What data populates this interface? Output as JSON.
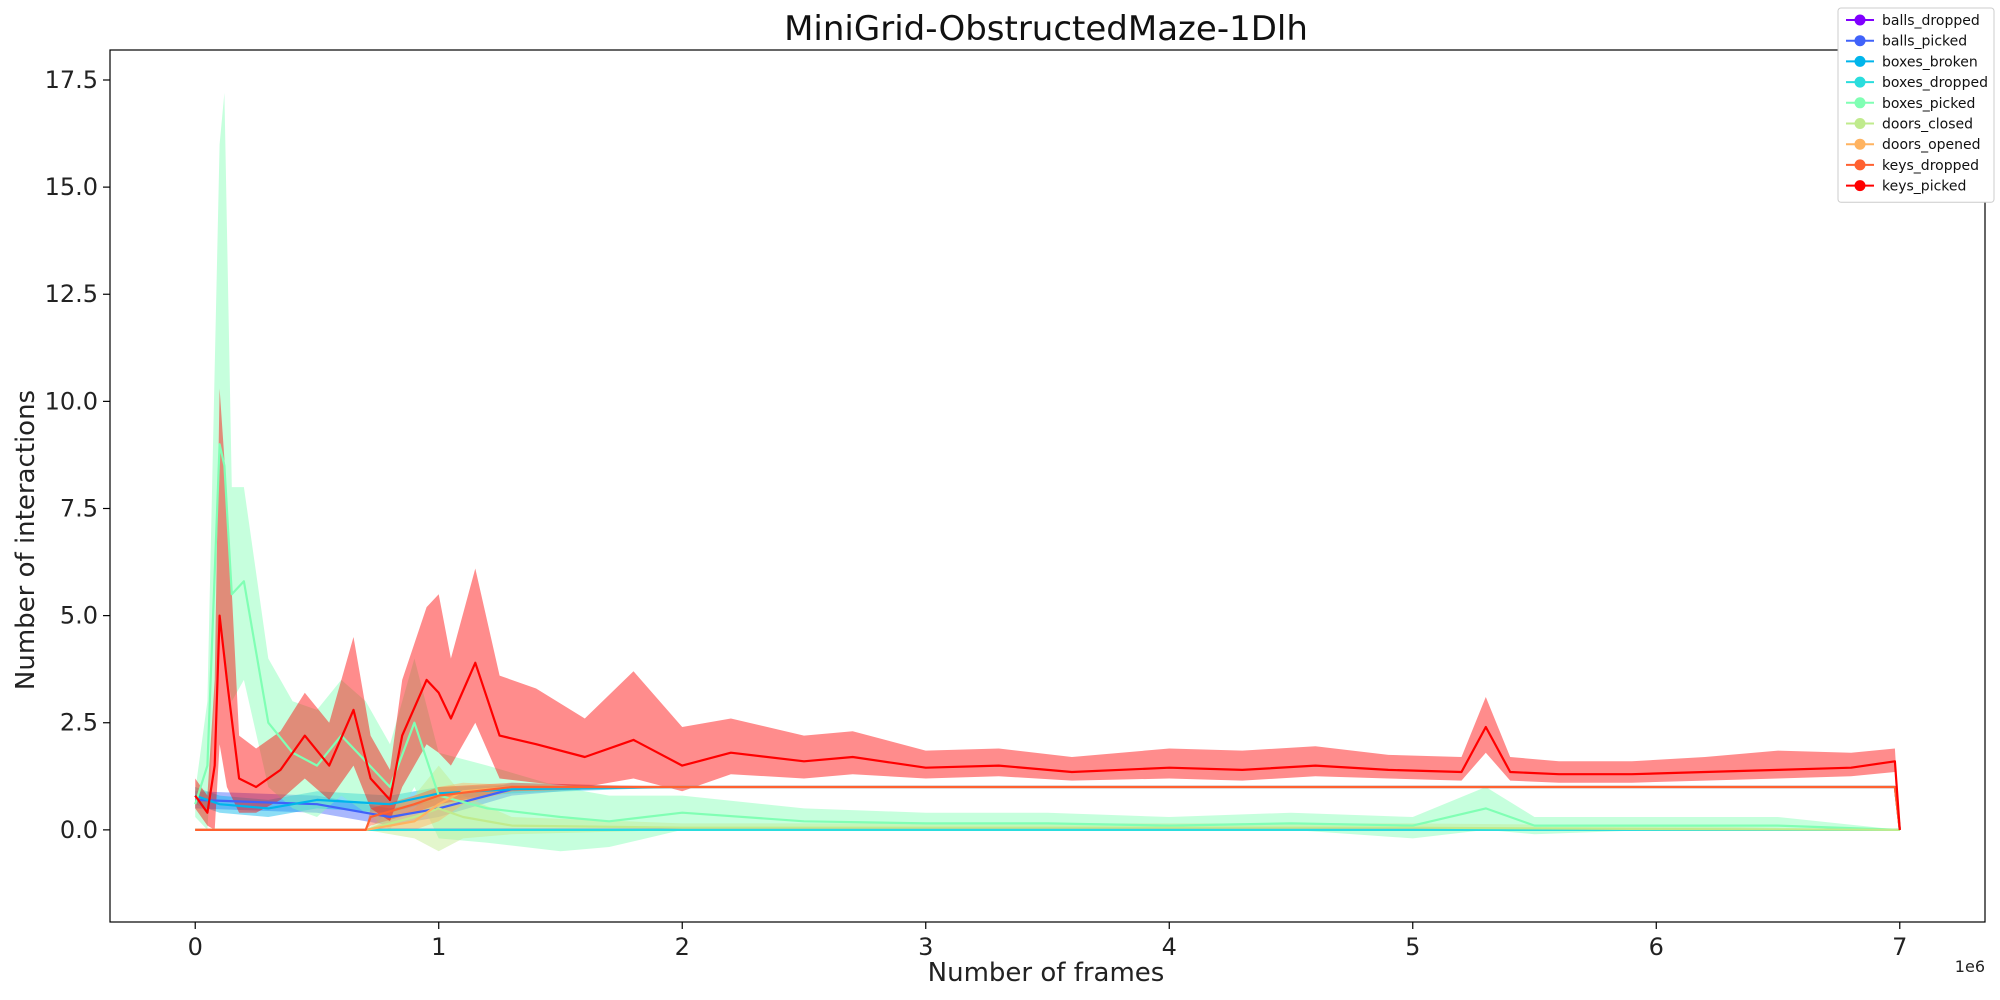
{
  "chart_data": {
    "type": "line",
    "title": "MiniGrid-ObstructedMaze-1Dlh",
    "xlabel": "Number of frames",
    "ylabel": "Number of interactions",
    "x_offset_label": "1e6",
    "xlim": [
      -0.35,
      7.35
    ],
    "ylim": [
      -2.15,
      18.2
    ],
    "x_ticks": [
      0,
      1,
      2,
      3,
      4,
      5,
      6,
      7
    ],
    "y_ticks": [
      0.0,
      2.5,
      5.0,
      7.5,
      10.0,
      12.5,
      15.0,
      17.5
    ],
    "x_tick_labels": [
      "0",
      "1",
      "2",
      "3",
      "4",
      "5",
      "6",
      "7"
    ],
    "y_tick_labels": [
      "0.0",
      "2.5",
      "5.0",
      "7.5",
      "10.0",
      "12.5",
      "15.0",
      "17.5"
    ],
    "grid": false,
    "legend_position": "top-right",
    "series": [
      {
        "name": "balls_dropped",
        "color": "#8000ff",
        "x": [
          0,
          1,
          2,
          3,
          4,
          5,
          6,
          7
        ],
        "values": [
          0,
          0,
          0,
          0,
          0,
          0,
          0,
          0
        ],
        "lower": [
          0,
          0,
          0,
          0,
          0,
          0,
          0,
          0
        ],
        "upper": [
          0,
          0,
          0,
          0,
          0,
          0,
          0,
          0
        ]
      },
      {
        "name": "balls_picked",
        "color": "#4062fa",
        "x": [
          0,
          0.5,
          0.8,
          1.0,
          1.3,
          1.6,
          2.0,
          3.0,
          4.0,
          5.0,
          6.0,
          6.98,
          7.0
        ],
        "values": [
          0.7,
          0.6,
          0.3,
          0.5,
          0.95,
          1.0,
          1.0,
          1.0,
          1.0,
          1.0,
          1.0,
          1.0,
          0.0
        ],
        "lower": [
          0.5,
          0.4,
          0.1,
          0.3,
          0.8,
          0.95,
          1.0,
          1.0,
          1.0,
          1.0,
          1.0,
          1.0,
          0.0
        ],
        "upper": [
          0.9,
          0.8,
          0.5,
          0.7,
          1.1,
          1.05,
          1.0,
          1.0,
          1.0,
          1.0,
          1.0,
          1.0,
          0.0
        ]
      },
      {
        "name": "boxes_broken",
        "color": "#00b5eb",
        "x": [
          0,
          0.1,
          0.3,
          0.5,
          0.8,
          1.0,
          1.3,
          2.0,
          3.0,
          4.0,
          5.0,
          6.0,
          6.98,
          7.0
        ],
        "values": [
          0.8,
          0.6,
          0.5,
          0.7,
          0.6,
          0.85,
          0.95,
          1.0,
          1.0,
          1.0,
          1.0,
          1.0,
          1.0,
          0.0
        ],
        "lower": [
          0.6,
          0.4,
          0.3,
          0.5,
          0.4,
          0.7,
          0.85,
          1.0,
          1.0,
          1.0,
          1.0,
          1.0,
          1.0,
          0.0
        ],
        "upper": [
          1.0,
          0.8,
          0.7,
          0.9,
          0.8,
          1.0,
          1.05,
          1.0,
          1.0,
          1.0,
          1.0,
          1.0,
          1.0,
          0.0
        ]
      },
      {
        "name": "boxes_dropped",
        "color": "#2adddd",
        "x": [
          0,
          1,
          2,
          3,
          4,
          5,
          6,
          7
        ],
        "values": [
          0,
          0,
          0,
          0,
          0,
          0,
          0,
          0
        ],
        "lower": [
          0,
          0,
          0,
          0,
          0,
          0,
          0,
          0
        ],
        "upper": [
          0,
          0,
          0,
          0,
          0,
          0,
          0,
          0
        ]
      },
      {
        "name": "boxes_picked",
        "color": "#80ffb4",
        "x": [
          0,
          0.05,
          0.1,
          0.12,
          0.15,
          0.2,
          0.3,
          0.4,
          0.5,
          0.6,
          0.7,
          0.8,
          0.9,
          1.0,
          1.2,
          1.5,
          1.7,
          2.0,
          2.5,
          3.0,
          3.5,
          4.0,
          4.5,
          5.0,
          5.3,
          5.5,
          6.0,
          6.5,
          7.0
        ],
        "values": [
          0.6,
          1.5,
          9.0,
          8.5,
          5.5,
          5.8,
          2.5,
          1.8,
          1.5,
          2.2,
          1.6,
          1.0,
          2.5,
          0.8,
          0.5,
          0.3,
          0.2,
          0.4,
          0.2,
          0.15,
          0.15,
          0.1,
          0.15,
          0.1,
          0.5,
          0.1,
          0.1,
          0.1,
          0.0
        ],
        "lower": [
          0.3,
          0.0,
          5.0,
          4.0,
          3.0,
          3.5,
          1.0,
          0.5,
          0.3,
          0.8,
          0.4,
          0.0,
          1.0,
          -0.2,
          -0.3,
          -0.5,
          -0.4,
          0.0,
          0.0,
          0.0,
          0.0,
          0.0,
          0.0,
          -0.2,
          0.0,
          -0.1,
          0.0,
          0.0,
          0.0
        ],
        "upper": [
          0.9,
          3.0,
          16.0,
          17.2,
          8.0,
          8.0,
          4.0,
          3.0,
          2.8,
          3.5,
          3.0,
          2.0,
          4.0,
          1.8,
          1.5,
          1.0,
          0.8,
          0.8,
          0.5,
          0.4,
          0.4,
          0.3,
          0.4,
          0.3,
          1.0,
          0.3,
          0.3,
          0.3,
          0.0
        ]
      },
      {
        "name": "doors_closed",
        "color": "#c0eb8d",
        "x": [
          0,
          0.7,
          0.9,
          1.0,
          1.1,
          1.3,
          2.0,
          3.0,
          4.0,
          5.0,
          6.0,
          7.0
        ],
        "values": [
          0,
          0,
          0.3,
          0.5,
          0.3,
          0.1,
          0.05,
          0.05,
          0.05,
          0.05,
          0.02,
          0.0
        ],
        "lower": [
          0,
          0,
          -0.2,
          -0.5,
          -0.2,
          -0.1,
          0.0,
          0.0,
          0.0,
          0.0,
          0.0,
          0.0
        ],
        "upper": [
          0,
          0,
          0.8,
          1.5,
          0.8,
          0.3,
          0.15,
          0.15,
          0.15,
          0.15,
          0.1,
          0.0
        ]
      },
      {
        "name": "doors_opened",
        "color": "#ffb360",
        "x": [
          0,
          0.7,
          0.9,
          1.0,
          1.1,
          1.3,
          2.0,
          3.0,
          4.0,
          5.0,
          6.0,
          6.98,
          7.0
        ],
        "values": [
          0,
          0,
          0.2,
          0.6,
          0.9,
          1.0,
          1.0,
          1.0,
          1.0,
          1.0,
          1.0,
          1.0,
          0.0
        ],
        "lower": [
          0,
          0,
          0.0,
          0.2,
          0.6,
          0.9,
          1.0,
          1.0,
          1.0,
          1.0,
          1.0,
          1.0,
          0.0
        ],
        "upper": [
          0,
          0,
          0.5,
          1.0,
          1.1,
          1.05,
          1.0,
          1.0,
          1.0,
          1.0,
          1.0,
          1.0,
          0.0
        ]
      },
      {
        "name": "keys_dropped",
        "color": "#ff6130",
        "x": [
          0,
          0.7,
          0.72,
          0.9,
          1.0,
          1.3,
          2.0,
          3.0,
          4.0,
          5.0,
          6.0,
          6.98,
          7.0
        ],
        "values": [
          0,
          0,
          0.3,
          0.6,
          0.8,
          1.0,
          1.0,
          1.0,
          1.0,
          1.0,
          1.0,
          1.0,
          0.0
        ],
        "lower": [
          0,
          0,
          0.1,
          0.4,
          0.6,
          0.9,
          1.0,
          1.0,
          1.0,
          1.0,
          1.0,
          1.0,
          0.0
        ],
        "upper": [
          0,
          0,
          0.5,
          0.8,
          1.0,
          1.1,
          1.0,
          1.0,
          1.0,
          1.0,
          1.0,
          1.0,
          0.0
        ]
      },
      {
        "name": "keys_picked",
        "color": "#ff0000",
        "x": [
          0,
          0.05,
          0.08,
          0.1,
          0.13,
          0.18,
          0.25,
          0.35,
          0.45,
          0.55,
          0.65,
          0.72,
          0.8,
          0.85,
          0.95,
          1.0,
          1.05,
          1.15,
          1.25,
          1.4,
          1.6,
          1.8,
          2.0,
          2.2,
          2.5,
          2.7,
          3.0,
          3.3,
          3.6,
          4.0,
          4.3,
          4.6,
          4.9,
          5.2,
          5.3,
          5.4,
          5.6,
          5.9,
          6.2,
          6.5,
          6.8,
          6.98,
          7.0
        ],
        "values": [
          0.8,
          0.4,
          1.5,
          5.0,
          3.5,
          1.2,
          1.0,
          1.4,
          2.2,
          1.5,
          2.8,
          1.2,
          0.7,
          2.2,
          3.5,
          3.2,
          2.6,
          3.9,
          2.2,
          2.0,
          1.7,
          2.1,
          1.5,
          1.8,
          1.6,
          1.7,
          1.45,
          1.5,
          1.35,
          1.45,
          1.4,
          1.5,
          1.4,
          1.35,
          2.4,
          1.35,
          1.3,
          1.3,
          1.35,
          1.4,
          1.45,
          1.6,
          0.0
        ],
        "lower": [
          0.5,
          0.1,
          0.0,
          2.0,
          1.0,
          0.4,
          0.4,
          0.7,
          1.2,
          0.7,
          1.5,
          0.5,
          0.2,
          1.0,
          2.0,
          1.8,
          1.5,
          2.5,
          1.2,
          1.1,
          1.0,
          1.2,
          0.9,
          1.3,
          1.2,
          1.3,
          1.2,
          1.25,
          1.15,
          1.2,
          1.15,
          1.25,
          1.2,
          1.15,
          1.8,
          1.15,
          1.1,
          1.1,
          1.15,
          1.2,
          1.25,
          1.35,
          0.0
        ],
        "upper": [
          1.2,
          0.8,
          3.5,
          10.3,
          7.8,
          2.2,
          1.9,
          2.3,
          3.2,
          2.5,
          4.5,
          2.2,
          1.4,
          3.5,
          5.2,
          5.5,
          4.0,
          6.1,
          3.6,
          3.3,
          2.6,
          3.7,
          2.4,
          2.6,
          2.2,
          2.3,
          1.85,
          1.9,
          1.7,
          1.9,
          1.85,
          1.95,
          1.75,
          1.7,
          3.1,
          1.7,
          1.6,
          1.6,
          1.7,
          1.85,
          1.8,
          1.9,
          0.0
        ]
      }
    ]
  }
}
